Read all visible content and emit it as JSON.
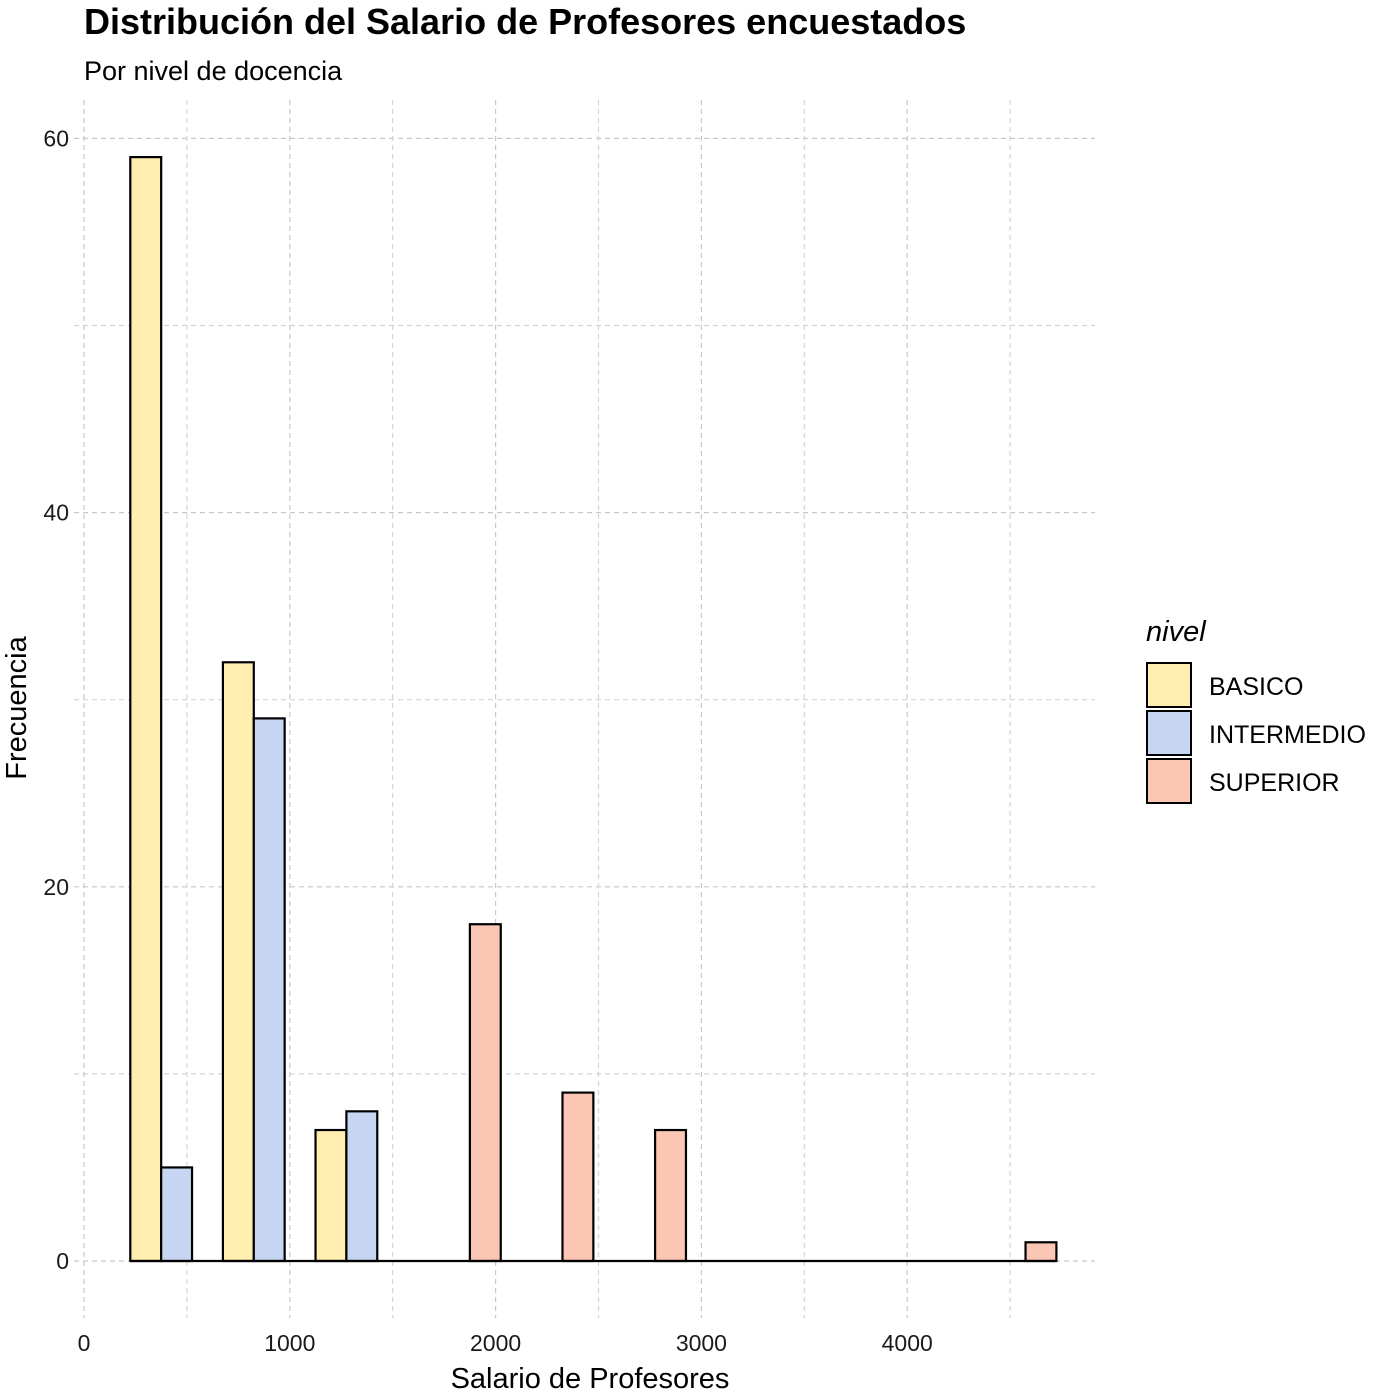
{
  "chart_data": {
    "type": "bar",
    "title": "Distribución del Salario de Profesores encuestados",
    "subtitle": "Por nivel de docencia",
    "xlabel": "Salario de Profesores",
    "ylabel": "Frecuencia",
    "xlim": [
      -100,
      4900
    ],
    "ylim": [
      -3,
      63
    ],
    "x_ticks": [
      0,
      1000,
      2000,
      3000,
      4000
    ],
    "y_ticks": [
      0,
      20,
      40,
      60
    ],
    "x_tick_labels": [
      "0",
      "1000",
      "2000",
      "3000",
      "4000"
    ],
    "y_tick_labels": [
      "0",
      "20",
      "40",
      "60"
    ],
    "grid": true,
    "legend": {
      "title": "nivel",
      "position": "right",
      "entries": [
        {
          "label": "BASICO",
          "color": "#FFEEB0"
        },
        {
          "label": "INTERMEDIO",
          "color": "#C6D6F2"
        },
        {
          "label": "SUPERIOR",
          "color": "#FCC6B4"
        }
      ]
    },
    "bin_width": 150,
    "series": [
      {
        "name": "BASICO",
        "color": "#FFEEB0",
        "x": [
          300,
          750,
          1200
        ],
        "values": [
          59,
          32,
          7
        ]
      },
      {
        "name": "INTERMEDIO",
        "color": "#C6D6F2",
        "x": [
          450,
          900,
          1350
        ],
        "values": [
          5,
          29,
          8
        ]
      },
      {
        "name": "SUPERIOR",
        "color": "#FCC6B4",
        "x": [
          1950,
          2400,
          2850,
          4650
        ],
        "values": [
          18,
          9,
          7,
          1
        ]
      }
    ]
  }
}
